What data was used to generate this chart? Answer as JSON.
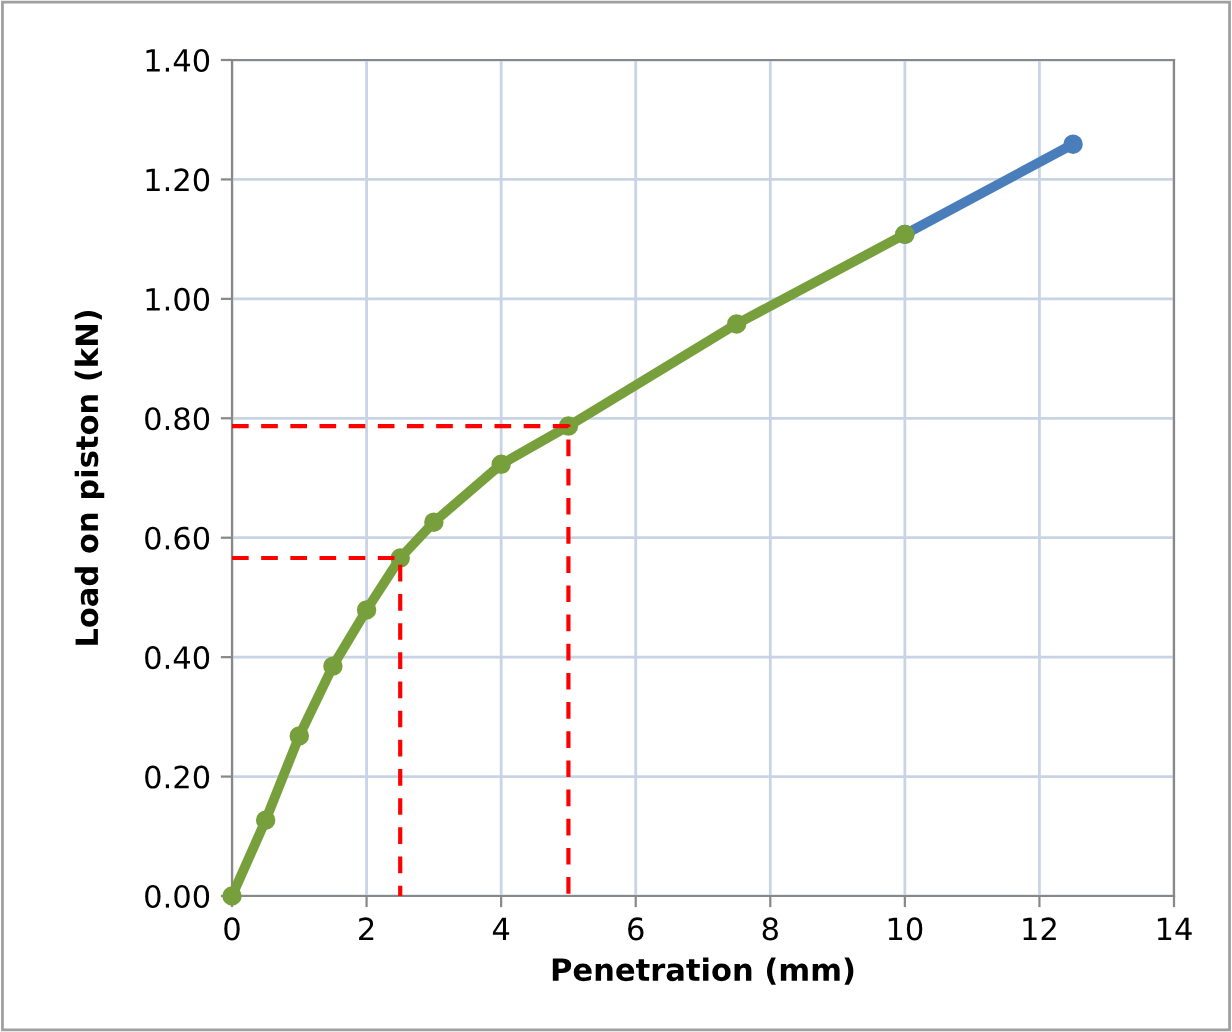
{
  "chart_data": {
    "type": "line",
    "xlabel": "Penetration (mm)",
    "ylabel": "Load on piston (kN)",
    "xlim": [
      0,
      14
    ],
    "xticks": [
      0,
      2,
      4,
      6,
      8,
      10,
      12,
      14
    ],
    "ylim": [
      0,
      1.4
    ],
    "yticks": [
      {
        "value": 0,
        "label": "0.00"
      },
      {
        "value": 0.2,
        "label": "0.20"
      },
      {
        "value": 0.4,
        "label": "0.40"
      },
      {
        "value": 0.6,
        "label": "0.60"
      },
      {
        "value": 0.8,
        "label": "0.80"
      },
      {
        "value": 1.0,
        "label": "1.00"
      },
      {
        "value": 1.2,
        "label": "1.20"
      },
      {
        "value": 1.4,
        "label": "1.40"
      }
    ],
    "grid": true,
    "marker": "circle",
    "series": [
      {
        "color": "#4a7ebb",
        "x": [
          10,
          12.5
        ],
        "values": [
          1.108,
          1.259
        ]
      },
      {
        "color": "#77a03c",
        "x": [
          0,
          0.5,
          1,
          1.5,
          2,
          2.5,
          3,
          4,
          5,
          7.5,
          10
        ],
        "values": [
          0,
          0.127,
          0.268,
          0.385,
          0.479,
          0.566,
          0.626,
          0.723,
          0.787,
          0.958,
          1.108
        ]
      },
      {
        "color": "#ff0000",
        "line_style": "dashed",
        "marker": "none",
        "x": [
          0,
          2.5,
          2.5
        ],
        "values": [
          0.566,
          0.566,
          0
        ]
      },
      {
        "color": "#ff0000",
        "line_style": "dashed",
        "marker": "none",
        "x": [
          0,
          5,
          5
        ],
        "values": [
          0.787,
          0.787,
          0
        ]
      }
    ]
  }
}
